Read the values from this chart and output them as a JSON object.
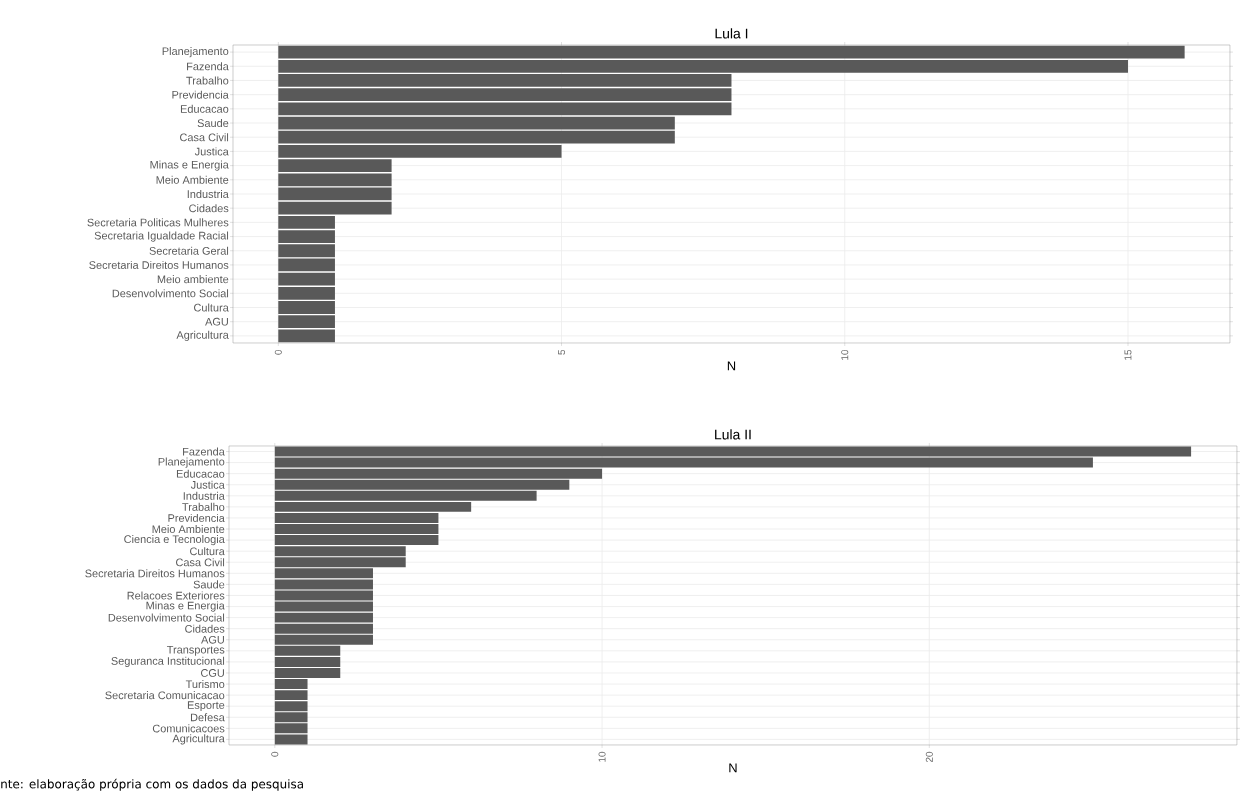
{
  "chart_data": [
    {
      "type": "bar",
      "orientation": "horizontal",
      "title": "Lula I",
      "xlabel": "N",
      "categories": [
        "Planejamento",
        "Fazenda",
        "Trabalho",
        "Previdencia",
        "Educacao",
        "Saude",
        "Casa Civil",
        "Justica",
        "Minas e Energia",
        "Meio Ambiente",
        "Industria",
        "Cidades",
        "Secretaria Politicas Mulheres",
        "Secretaria Igualdade Racial",
        "Secretaria Geral",
        "Secretaria Direitos Humanos",
        "Meio ambiente",
        "Desenvolvimento Social",
        "Cultura",
        "AGU",
        "Agricultura"
      ],
      "values": [
        16,
        15,
        8,
        8,
        8,
        7,
        7,
        5,
        2,
        2,
        2,
        2,
        1,
        1,
        1,
        1,
        1,
        1,
        1,
        1,
        1
      ],
      "color": "#595959",
      "xlim": [
        -0.8,
        16.8
      ],
      "xticks": [
        0,
        5,
        10,
        15
      ],
      "grid": true
    },
    {
      "type": "bar",
      "orientation": "horizontal",
      "title": "Lula II",
      "xlabel": "N",
      "categories": [
        "Fazenda",
        "Planejamento",
        "Educacao",
        "Justica",
        "Industria",
        "Trabalho",
        "Previdencia",
        "Meio Ambiente",
        "Ciencia e Tecnologia",
        "Cultura",
        "Casa Civil",
        "Secretaria Direitos Humanos",
        "Saude",
        "Relacoes Exteriores",
        "Minas e Energia",
        "Desenvolvimento Social",
        "Cidades",
        "AGU",
        "Transportes",
        "Seguranca Institucional",
        "CGU",
        "Turismo",
        "Secretaria Comunicacao",
        "Esporte",
        "Defesa",
        "Comunicacoes",
        "Agricultura"
      ],
      "values": [
        28,
        25,
        10,
        9,
        8,
        6,
        5,
        5,
        5,
        4,
        4,
        3,
        3,
        3,
        3,
        3,
        3,
        3,
        2,
        2,
        2,
        1,
        1,
        1,
        1,
        1,
        1
      ],
      "color": "#595959",
      "xlim": [
        -1.4,
        29.4
      ],
      "xticks": [
        0,
        10,
        20
      ],
      "grid": true,
      "annotations": [
        "nte: elaboração própria com os dados da pesquisa"
      ]
    }
  ]
}
